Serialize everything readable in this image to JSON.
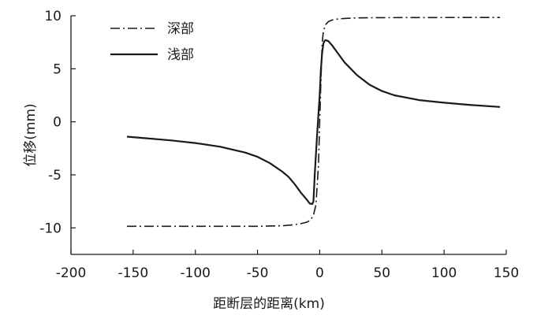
{
  "chart_data": {
    "type": "line",
    "xlabel": "距断层的距离(km)",
    "ylabel": "位移(mm)",
    "xlim": [
      -200,
      150
    ],
    "ylim": [
      -12.5,
      10
    ],
    "xticks": [
      -200,
      -150,
      -100,
      -50,
      0,
      50,
      100,
      150
    ],
    "yticks": [
      -10,
      -5,
      0,
      5,
      10
    ],
    "xtick_labels": [
      "-200",
      "-150",
      "-100",
      "-50",
      "0",
      "50",
      "100",
      "150"
    ],
    "ytick_labels": [
      "-10",
      "-5",
      "0",
      "5",
      "10"
    ],
    "legend_position": "top-left",
    "grid": false,
    "series": [
      {
        "name": "深部",
        "style": "dashdot",
        "color": "#1a1a1a",
        "x": [
          -155,
          -120,
          -80,
          -50,
          -30,
          -20,
          -15,
          -10,
          -7,
          -5,
          -3,
          -1,
          0,
          1,
          2,
          3,
          5,
          7,
          10,
          15,
          20,
          30,
          50,
          80,
          120,
          145
        ],
        "y": [
          -9.85,
          -9.85,
          -9.85,
          -9.85,
          -9.8,
          -9.7,
          -9.6,
          -9.45,
          -9.2,
          -8.8,
          -7.8,
          -4.0,
          0.0,
          4.0,
          7.5,
          8.6,
          9.2,
          9.45,
          9.6,
          9.7,
          9.75,
          9.8,
          9.82,
          9.83,
          9.84,
          9.84
        ]
      },
      {
        "name": "浅部",
        "style": "solid",
        "color": "#1a1a1a",
        "x": [
          -155,
          -140,
          -120,
          -100,
          -80,
          -60,
          -50,
          -40,
          -30,
          -25,
          -20,
          -15,
          -10,
          -8,
          -6,
          -5,
          -4,
          -2,
          0,
          1,
          2,
          3,
          4,
          5,
          7,
          10,
          15,
          20,
          30,
          40,
          50,
          60,
          80,
          100,
          120,
          145
        ],
        "y": [
          -1.4,
          -1.55,
          -1.75,
          -2.0,
          -2.35,
          -2.9,
          -3.3,
          -3.9,
          -4.7,
          -5.2,
          -5.9,
          -6.7,
          -7.4,
          -7.7,
          -7.75,
          -7.5,
          -5.0,
          -1.0,
          2.5,
          5.0,
          6.6,
          7.4,
          7.65,
          7.7,
          7.6,
          7.2,
          6.4,
          5.6,
          4.4,
          3.5,
          2.9,
          2.5,
          2.05,
          1.8,
          1.6,
          1.4
        ]
      }
    ]
  }
}
